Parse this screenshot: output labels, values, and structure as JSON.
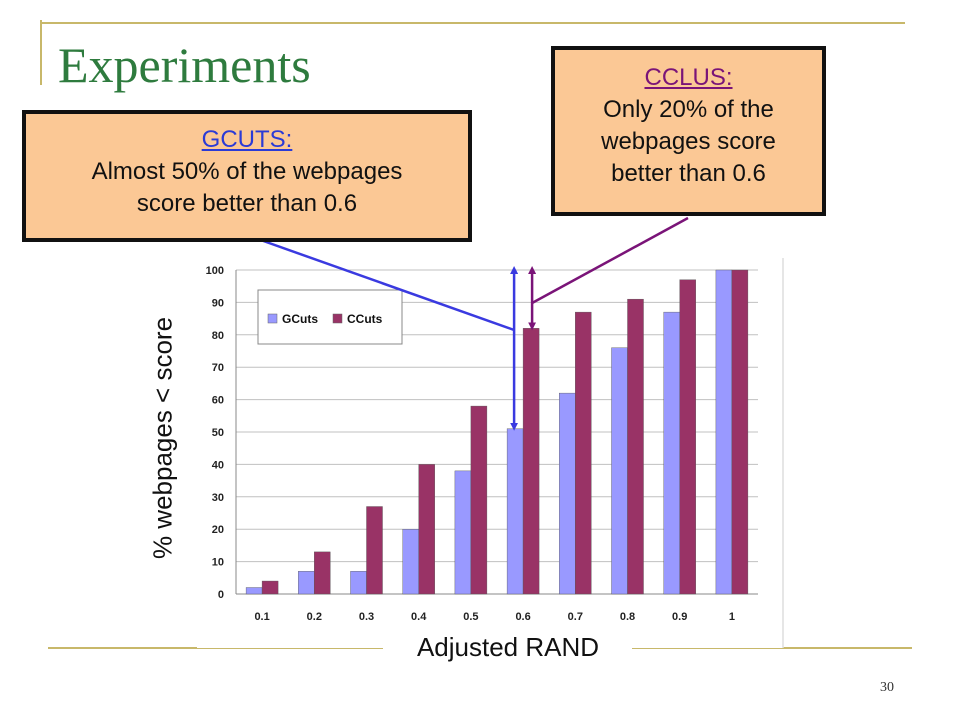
{
  "title": "Experiments",
  "page_number": "30",
  "callouts": {
    "gcuts": {
      "head": "GCUTS:",
      "line1": "Almost 50% of the webpages",
      "line2": "score better than 0.6"
    },
    "cclus": {
      "head": "CCLUS:",
      "line1": "Only 20% of the",
      "line2": "webpages score",
      "line3": "better than 0.6"
    }
  },
  "colors": {
    "title": "#2e7b3e",
    "gcuts_bar": "#9999ff",
    "ccuts_bar": "#993366",
    "callout_fill": "#fbc895",
    "gcuts_arrow": "#3a3ae0",
    "cclus_arrow": "#7a1478",
    "decoration": "#c8b86a"
  },
  "chart_data": {
    "type": "bar",
    "xlabel": "Adjusted RAND",
    "ylabel": "% webpages < score",
    "categories": [
      "0.1",
      "0.2",
      "0.3",
      "0.4",
      "0.5",
      "0.6",
      "0.7",
      "0.8",
      "0.9",
      "1"
    ],
    "series": [
      {
        "name": "GCuts",
        "values": [
          2,
          7,
          7,
          20,
          38,
          51,
          62,
          76,
          87,
          100
        ]
      },
      {
        "name": "CCuts",
        "values": [
          4,
          13,
          27,
          40,
          58,
          82,
          87,
          91,
          97,
          100
        ]
      }
    ],
    "ylim": [
      0,
      100
    ],
    "yticks": [
      0,
      10,
      20,
      30,
      40,
      50,
      60,
      70,
      80,
      90,
      100
    ],
    "grid": true,
    "legend_position": "top-left"
  }
}
